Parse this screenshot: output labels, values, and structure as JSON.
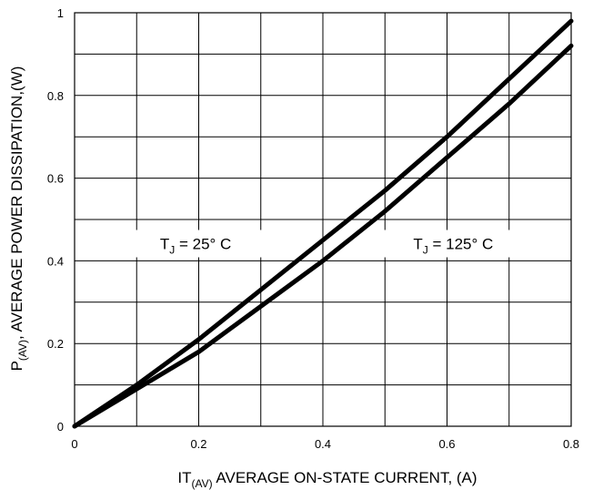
{
  "chart_data": {
    "type": "line",
    "xlabel": {
      "main": "IT",
      "sub": "(AV)",
      "rest": " AVERAGE ON-STATE CURRENT, (A)"
    },
    "ylabel": {
      "main": "P",
      "sub": "(AV)",
      "rest": ", AVERAGE POWER DISSIPATION,(W)"
    },
    "xlim": [
      0,
      0.8
    ],
    "ylim": [
      0,
      1
    ],
    "xticks": [
      "0",
      "0.2",
      "0.4",
      "0.6",
      "0.8"
    ],
    "yticks": [
      "0",
      "0.2",
      "0.4",
      "0.6",
      "0.8",
      "1"
    ],
    "x_minor_grid": [
      0.1,
      0.3,
      0.5,
      0.7
    ],
    "y_minor_grid": [
      0.1,
      0.3,
      0.5,
      0.7,
      0.9
    ],
    "grid": true,
    "series": [
      {
        "name": "TJ = 25° C",
        "x": [
          0,
          0.1,
          0.2,
          0.3,
          0.4,
          0.5,
          0.6,
          0.7,
          0.8
        ],
        "y": [
          0,
          0.1,
          0.21,
          0.33,
          0.45,
          0.57,
          0.7,
          0.84,
          0.98
        ]
      },
      {
        "name": "TJ = 125° C",
        "x": [
          0,
          0.1,
          0.2,
          0.3,
          0.4,
          0.5,
          0.6,
          0.7,
          0.8
        ],
        "y": [
          0,
          0.09,
          0.18,
          0.29,
          0.4,
          0.52,
          0.65,
          0.78,
          0.92
        ]
      }
    ],
    "annotations": [
      {
        "main": "T",
        "sub": "J",
        "rest": " = 25°  C",
        "x": 0.195,
        "y": 0.435
      },
      {
        "main": "T",
        "sub": "J",
        "rest": " = 125°  C",
        "x": 0.61,
        "y": 0.435
      }
    ],
    "line_color": "#000000"
  }
}
